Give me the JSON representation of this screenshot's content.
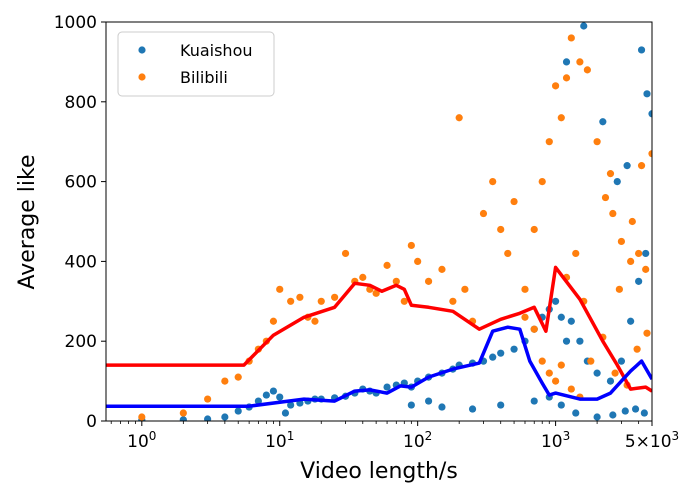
{
  "chart_data": {
    "type": "scatter",
    "xlabel": "Video length/s",
    "ylabel": "Average like",
    "xscale": "log",
    "xlim": [
      0.55,
      5000
    ],
    "ylim": [
      0,
      1000
    ],
    "x_ticks": [
      {
        "value": 1,
        "base": "10",
        "exp": "0"
      },
      {
        "value": 10,
        "base": "10",
        "exp": "1"
      },
      {
        "value": 100,
        "base": "10",
        "exp": "2"
      },
      {
        "value": 1000,
        "base": "10",
        "exp": "3"
      },
      {
        "value": 5000,
        "base": "5×10",
        "exp": "3"
      }
    ],
    "y_ticks": [
      0,
      200,
      400,
      600,
      800,
      1000
    ],
    "grid": false,
    "legend": {
      "position": "top-left",
      "entries": [
        {
          "label": "Kuaishou",
          "color": "#1f77b4"
        },
        {
          "label": "Bilibili",
          "color": "#ff7f0e"
        }
      ]
    },
    "series": [
      {
        "name": "Kuaishou",
        "kind": "scatter",
        "color": "#1f77b4",
        "points": [
          [
            1,
            2
          ],
          [
            2,
            3
          ],
          [
            3,
            5
          ],
          [
            4,
            10
          ],
          [
            5,
            25
          ],
          [
            6,
            35
          ],
          [
            7,
            50
          ],
          [
            8,
            65
          ],
          [
            9,
            75
          ],
          [
            10,
            60
          ],
          [
            11,
            20
          ],
          [
            12,
            40
          ],
          [
            14,
            45
          ],
          [
            16,
            50
          ],
          [
            18,
            55
          ],
          [
            20,
            55
          ],
          [
            25,
            58
          ],
          [
            30,
            62
          ],
          [
            35,
            70
          ],
          [
            40,
            80
          ],
          [
            45,
            75
          ],
          [
            50,
            70
          ],
          [
            60,
            85
          ],
          [
            70,
            90
          ],
          [
            80,
            95
          ],
          [
            90,
            85
          ],
          [
            100,
            100
          ],
          [
            120,
            110
          ],
          [
            150,
            120
          ],
          [
            180,
            130
          ],
          [
            200,
            140
          ],
          [
            250,
            145
          ],
          [
            300,
            150
          ],
          [
            350,
            160
          ],
          [
            400,
            170
          ],
          [
            500,
            180
          ],
          [
            600,
            200
          ],
          [
            700,
            230
          ],
          [
            800,
            260
          ],
          [
            900,
            280
          ],
          [
            1000,
            300
          ],
          [
            1100,
            260
          ],
          [
            1200,
            200
          ],
          [
            1300,
            250
          ],
          [
            1500,
            200
          ],
          [
            1700,
            150
          ],
          [
            2000,
            120
          ],
          [
            2500,
            100
          ],
          [
            3000,
            150
          ],
          [
            3500,
            250
          ],
          [
            4000,
            350
          ],
          [
            4500,
            420
          ],
          [
            5000,
            770
          ],
          [
            1200,
            900
          ],
          [
            1600,
            990
          ],
          [
            2200,
            750
          ],
          [
            2800,
            600
          ],
          [
            3300,
            640
          ],
          [
            4200,
            930
          ],
          [
            4600,
            820
          ],
          [
            250,
            30
          ],
          [
            400,
            40
          ],
          [
            700,
            50
          ],
          [
            900,
            60
          ],
          [
            1100,
            40
          ],
          [
            1400,
            20
          ],
          [
            2000,
            10
          ],
          [
            2600,
            15
          ],
          [
            3200,
            25
          ],
          [
            3800,
            30
          ],
          [
            4400,
            20
          ],
          [
            150,
            35
          ],
          [
            120,
            50
          ],
          [
            90,
            40
          ]
        ]
      },
      {
        "name": "Bilibili",
        "kind": "scatter",
        "color": "#ff7f0e",
        "points": [
          [
            1,
            10
          ],
          [
            2,
            20
          ],
          [
            3,
            55
          ],
          [
            4,
            100
          ],
          [
            5,
            110
          ],
          [
            6,
            150
          ],
          [
            7,
            180
          ],
          [
            8,
            200
          ],
          [
            9,
            250
          ],
          [
            10,
            330
          ],
          [
            12,
            300
          ],
          [
            14,
            310
          ],
          [
            16,
            260
          ],
          [
            18,
            250
          ],
          [
            20,
            300
          ],
          [
            25,
            310
          ],
          [
            30,
            420
          ],
          [
            35,
            350
          ],
          [
            40,
            360
          ],
          [
            45,
            330
          ],
          [
            50,
            320
          ],
          [
            60,
            390
          ],
          [
            70,
            350
          ],
          [
            80,
            300
          ],
          [
            90,
            440
          ],
          [
            100,
            400
          ],
          [
            120,
            350
          ],
          [
            150,
            380
          ],
          [
            180,
            300
          ],
          [
            200,
            760
          ],
          [
            220,
            330
          ],
          [
            250,
            250
          ],
          [
            300,
            520
          ],
          [
            350,
            600
          ],
          [
            400,
            480
          ],
          [
            450,
            420
          ],
          [
            500,
            550
          ],
          [
            600,
            330
          ],
          [
            700,
            480
          ],
          [
            800,
            600
          ],
          [
            900,
            700
          ],
          [
            1000,
            840
          ],
          [
            1100,
            760
          ],
          [
            1200,
            860
          ],
          [
            1300,
            960
          ],
          [
            1500,
            900
          ],
          [
            1700,
            880
          ],
          [
            2000,
            700
          ],
          [
            2300,
            560
          ],
          [
            2600,
            520
          ],
          [
            3000,
            450
          ],
          [
            3500,
            400
          ],
          [
            4000,
            420
          ],
          [
            4500,
            380
          ],
          [
            5000,
            670
          ],
          [
            800,
            150
          ],
          [
            900,
            120
          ],
          [
            1000,
            100
          ],
          [
            1100,
            140
          ],
          [
            1300,
            80
          ],
          [
            1500,
            60
          ],
          [
            1800,
            150
          ],
          [
            2200,
            210
          ],
          [
            2700,
            120
          ],
          [
            3300,
            90
          ],
          [
            3900,
            180
          ],
          [
            4600,
            220
          ],
          [
            600,
            260
          ],
          [
            700,
            230
          ],
          [
            1200,
            360
          ],
          [
            1400,
            420
          ],
          [
            1600,
            300
          ],
          [
            2500,
            620
          ],
          [
            2900,
            330
          ],
          [
            3600,
            500
          ],
          [
            4200,
            640
          ]
        ]
      },
      {
        "name": "",
        "kind": "line",
        "color": "#ff0000",
        "points": [
          [
            0.55,
            140
          ],
          [
            5.5,
            140
          ],
          [
            9,
            215
          ],
          [
            15,
            260
          ],
          [
            25,
            285
          ],
          [
            35,
            345
          ],
          [
            45,
            340
          ],
          [
            55,
            325
          ],
          [
            70,
            340
          ],
          [
            80,
            330
          ],
          [
            90,
            290
          ],
          [
            120,
            285
          ],
          [
            180,
            275
          ],
          [
            280,
            230
          ],
          [
            400,
            255
          ],
          [
            550,
            270
          ],
          [
            700,
            285
          ],
          [
            850,
            225
          ],
          [
            1000,
            385
          ],
          [
            1500,
            305
          ],
          [
            2200,
            200
          ],
          [
            2800,
            140
          ],
          [
            3500,
            80
          ],
          [
            4500,
            85
          ],
          [
            5000,
            75
          ]
        ]
      },
      {
        "name": "",
        "kind": "line",
        "color": "#0000ff",
        "points": [
          [
            0.55,
            37
          ],
          [
            6,
            37
          ],
          [
            15,
            55
          ],
          [
            25,
            50
          ],
          [
            35,
            75
          ],
          [
            45,
            78
          ],
          [
            60,
            70
          ],
          [
            75,
            88
          ],
          [
            90,
            85
          ],
          [
            120,
            110
          ],
          [
            180,
            130
          ],
          [
            280,
            145
          ],
          [
            350,
            225
          ],
          [
            450,
            235
          ],
          [
            550,
            230
          ],
          [
            650,
            150
          ],
          [
            800,
            95
          ],
          [
            900,
            65
          ],
          [
            1000,
            70
          ],
          [
            1500,
            55
          ],
          [
            2000,
            55
          ],
          [
            2500,
            70
          ],
          [
            3000,
            100
          ],
          [
            3500,
            125
          ],
          [
            4200,
            150
          ],
          [
            5000,
            105
          ]
        ]
      }
    ]
  }
}
